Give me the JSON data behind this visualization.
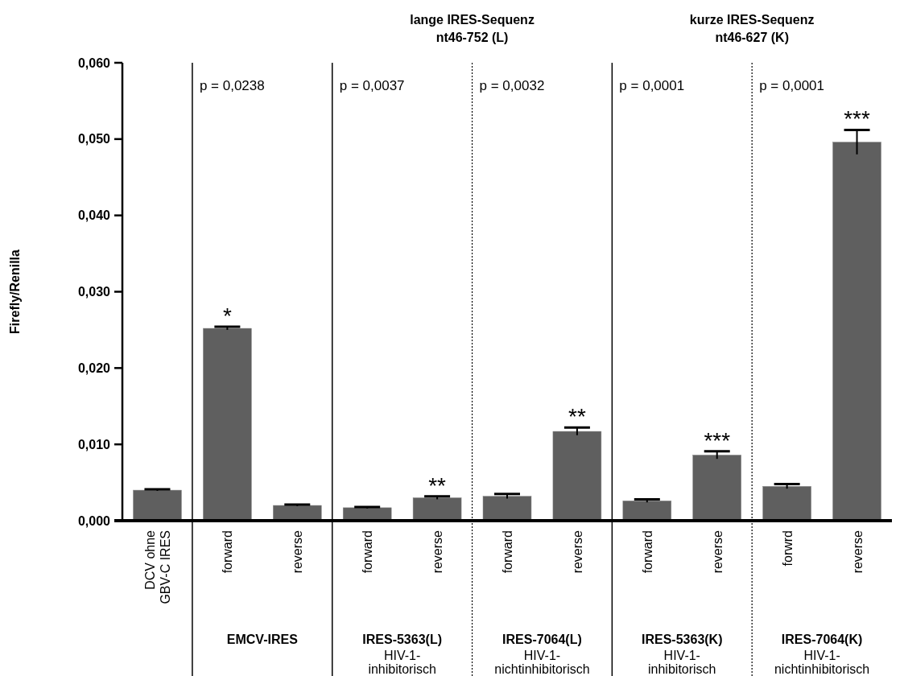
{
  "chart_data": {
    "type": "bar",
    "ylabel": "Firefly/Renilla",
    "categories": [
      "DCV ohne\nGBV-C IRES",
      "forward",
      "reverse",
      "forward",
      "reverse",
      "forward",
      "reverse",
      "forward",
      "reverse",
      "forwrd",
      "reverse"
    ],
    "values": [
      0.004,
      0.0252,
      0.002,
      0.0017,
      0.003,
      0.0032,
      0.0117,
      0.0026,
      0.0086,
      0.0045,
      0.0496
    ],
    "errors": [
      0.0001,
      0.0002,
      0.0001,
      0.0001,
      0.0002,
      0.0003,
      0.0005,
      0.0002,
      0.0005,
      0.0003,
      0.0016
    ],
    "value_labels": [
      null,
      "*",
      null,
      null,
      "**",
      null,
      "**",
      null,
      "***",
      null,
      "***"
    ],
    "color": "#5f5f5f",
    "ylim": [
      0,
      0.06
    ],
    "yticks": [
      {
        "value": 0,
        "label": "0,000"
      },
      {
        "value": 0.01,
        "label": "0,010"
      },
      {
        "value": 0.02,
        "label": "0,020"
      },
      {
        "value": 0.03,
        "label": "0,030"
      },
      {
        "value": 0.04,
        "label": "0,040"
      },
      {
        "value": 0.05,
        "label": "0,050"
      },
      {
        "value": 0.06,
        "label": "0,060"
      }
    ],
    "grid": false,
    "annotations": [
      "lange IRES-Sequenz\nnt46-752 (L)",
      "kurze IRES-Sequenz\nnt46-627 (K)",
      "p = 0,0238",
      "p = 0,0037",
      "p = 0,0032",
      "p = 0,0001",
      "p = 0,0001",
      "EMCV-IRES",
      "IRES-5363(L)",
      "IRES-7064(L)",
      "IRES-5363(K)",
      "IRES-7064(K)",
      "HIV-1-\ninhibitorisch",
      "HIV-1-\nnichtinhibitorisch",
      "HIV-1-\ninhibitorisch",
      "HIV-1-\nnichtinhibitorisch"
    ]
  }
}
